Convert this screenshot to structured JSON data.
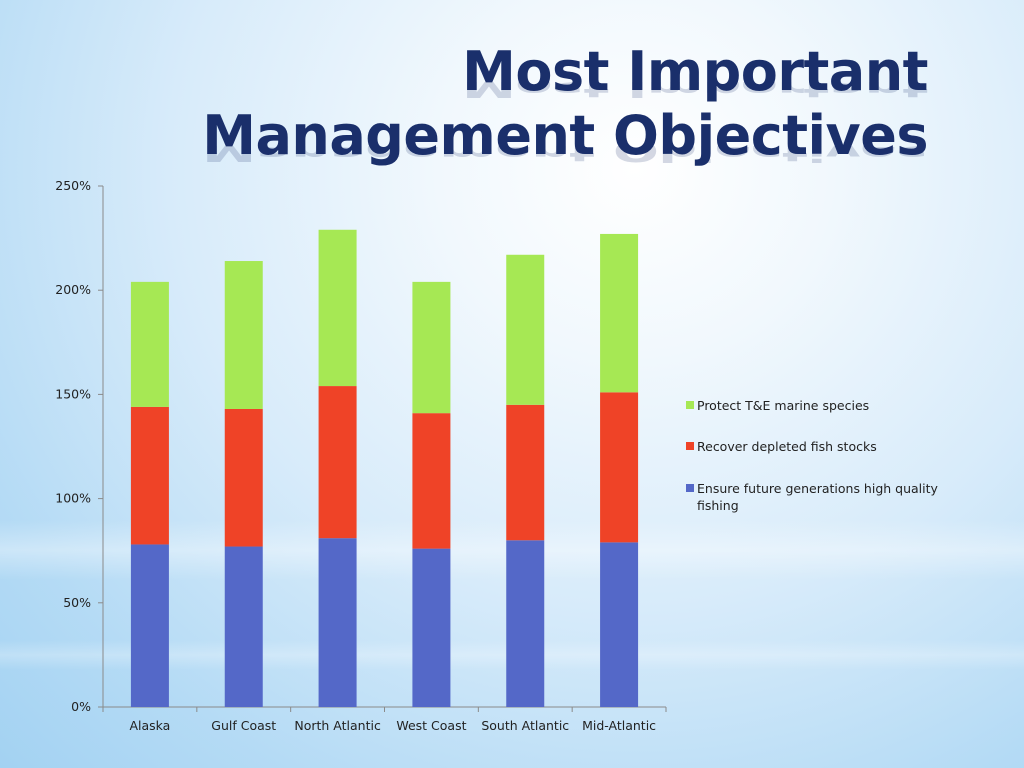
{
  "slide": {
    "title_line1": "Most Important",
    "title_line2": "Management Objectives"
  },
  "chart_data": {
    "type": "bar",
    "stacked": true,
    "categories": [
      "Alaska",
      "Gulf Coast",
      "North Atlantic",
      "West Coast",
      "South Atlantic",
      "Mid-Atlantic"
    ],
    "series": [
      {
        "name": "Ensure future generations high quality fishing",
        "color": "#5468c8",
        "values": [
          78,
          77,
          81,
          76,
          80,
          79
        ]
      },
      {
        "name": "Recover depleted fish stocks",
        "color": "#ef4327",
        "values": [
          66,
          66,
          73,
          65,
          65,
          72
        ]
      },
      {
        "name": "Protect T&E marine species",
        "color": "#a6e854",
        "values": [
          60,
          71,
          75,
          63,
          72,
          76
        ]
      }
    ],
    "ylim": [
      0,
      250
    ],
    "yticks": [
      "0%",
      "50%",
      "100%",
      "150%",
      "200%",
      "250%"
    ],
    "ytick_values": [
      0,
      50,
      100,
      150,
      200,
      250
    ],
    "legend_position": "right",
    "legend_order": [
      "Protect T&E marine species",
      "Recover depleted fish stocks",
      "Ensure future generations high quality fishing"
    ],
    "grid": false
  }
}
